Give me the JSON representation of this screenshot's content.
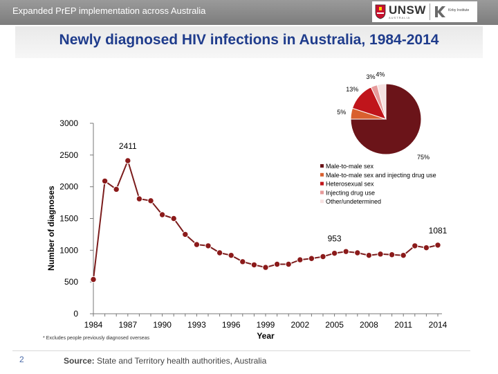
{
  "header": {
    "title": "Expanded PrEP implementation across Australia",
    "logo_text": "UNSW",
    "logo_sub": "AUSTRALIA",
    "partner_text": "Kirby Institute"
  },
  "slide_title": "Newly diagnosed HIV infections in Australia, 1984-2014",
  "footnote": "* Excludes people previously diagnosed overseas",
  "page_number": "2",
  "source_label": "Source:",
  "source_text": " State and Territory health authorities, Australia",
  "colors": {
    "line": "#7b1c1c",
    "marker": "#8b1a1a",
    "pie": [
      "#6b1419",
      "#d9602f",
      "#c0151b",
      "#e69a9a",
      "#f6e1e1"
    ]
  },
  "chart_data": [
    {
      "type": "line",
      "title": "Newly diagnosed HIV infections in Australia, 1984-2014",
      "xlabel": "Year",
      "ylabel": "Number of diagnoses",
      "xlim": [
        1984,
        2014
      ],
      "ylim": [
        0,
        3000
      ],
      "x_ticks": [
        "1984",
        "1987",
        "1990",
        "1993",
        "1996",
        "1999",
        "2002",
        "2005",
        "2008",
        "2011",
        "2014"
      ],
      "y_ticks": [
        "0",
        "500",
        "1000",
        "1500",
        "2000",
        "2500",
        "3000"
      ],
      "grid": false,
      "x": [
        1984,
        1985,
        1986,
        1987,
        1988,
        1989,
        1990,
        1991,
        1992,
        1993,
        1994,
        1995,
        1996,
        1997,
        1998,
        1999,
        2000,
        2001,
        2002,
        2003,
        2004,
        2005,
        2006,
        2007,
        2008,
        2009,
        2010,
        2011,
        2012,
        2013,
        2014
      ],
      "values": [
        540,
        2090,
        1960,
        2411,
        1810,
        1780,
        1560,
        1500,
        1250,
        1090,
        1070,
        960,
        920,
        820,
        770,
        730,
        780,
        780,
        850,
        870,
        900,
        953,
        980,
        960,
        920,
        940,
        930,
        920,
        1070,
        1040,
        1081
      ],
      "data_labels": [
        {
          "label": "2411",
          "x": 1987,
          "y": 2411
        },
        {
          "label": "953",
          "x": 2005,
          "y": 953
        },
        {
          "label": "1081",
          "x": 2014,
          "y": 1081
        }
      ]
    },
    {
      "type": "pie",
      "categories": [
        "Male-to-male sex",
        "Male-to-male sex and injecting drug use",
        "Heterosexual sex",
        "Injecting drug use",
        "Other/undetermined"
      ],
      "values": [
        75,
        5,
        13,
        3,
        4
      ],
      "labels": [
        "75%",
        "5%",
        "13%",
        "3%",
        "4%"
      ],
      "legend_position": "below-right"
    }
  ]
}
